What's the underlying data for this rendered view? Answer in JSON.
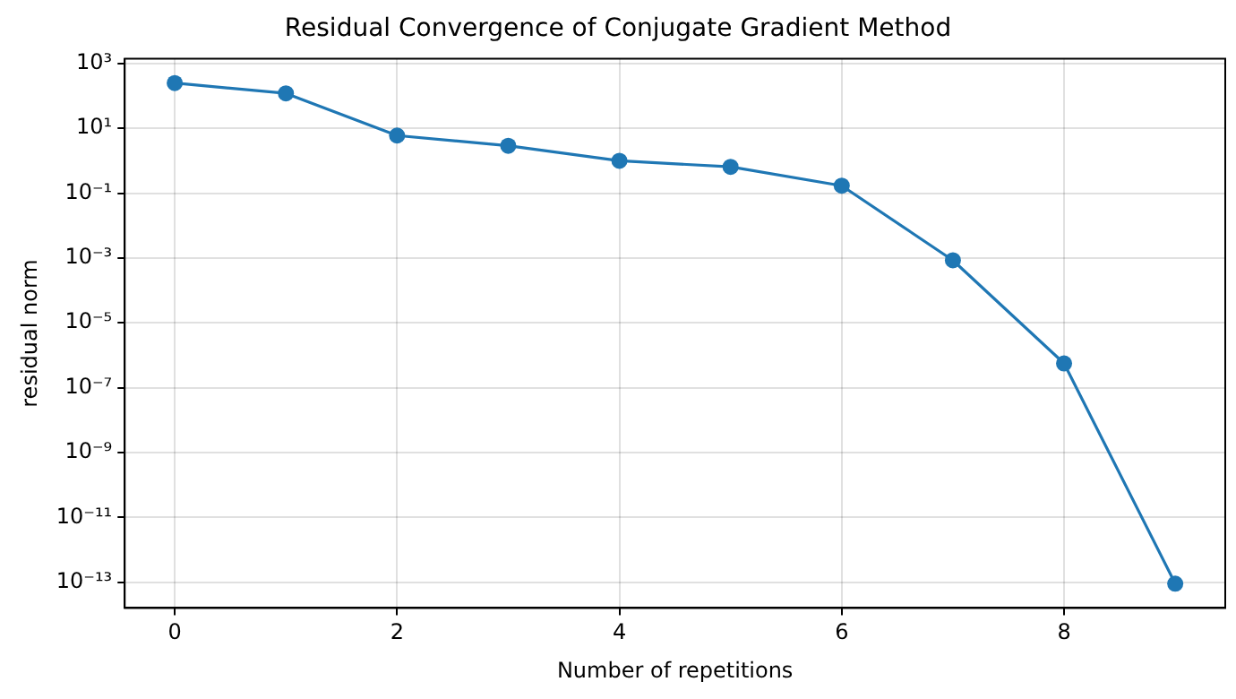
{
  "chart_data": {
    "type": "line",
    "title": "Residual Convergence of Conjugate Gradient Method",
    "xlabel": "Number of repetitions",
    "ylabel": "residual norm",
    "x": [
      0,
      1,
      2,
      3,
      4,
      5,
      6,
      7,
      8,
      9
    ],
    "series": [
      {
        "color": "#1f77b4",
        "values": [
          250,
          120,
          6,
          2.9,
          1.0,
          0.65,
          0.17,
          0.00085,
          5.6e-07,
          9e-14
        ]
      }
    ],
    "log": "y",
    "xlim": [
      -0.45,
      9.45
    ],
    "xticks": [
      0,
      2,
      4,
      6,
      8
    ],
    "ylim": [
      1.6e-14,
      1400.0
    ],
    "yticks": [
      {
        "value": 1000.0,
        "label": "10³"
      },
      {
        "value": 10,
        "label": "10¹"
      },
      {
        "value": 0.1,
        "label": "10⁻¹"
      },
      {
        "value": 0.001,
        "label": "10⁻³"
      },
      {
        "value": 1e-05,
        "label": "10⁻⁵"
      },
      {
        "value": 1e-07,
        "label": "10⁻⁷"
      },
      {
        "value": 1e-09,
        "label": "10⁻⁹"
      },
      {
        "value": 1e-11,
        "label": "10⁻¹¹"
      },
      {
        "value": 1e-13,
        "label": "10⁻¹³"
      }
    ],
    "grid": true,
    "marker": "circle",
    "line_style": "solid",
    "legend": false
  }
}
